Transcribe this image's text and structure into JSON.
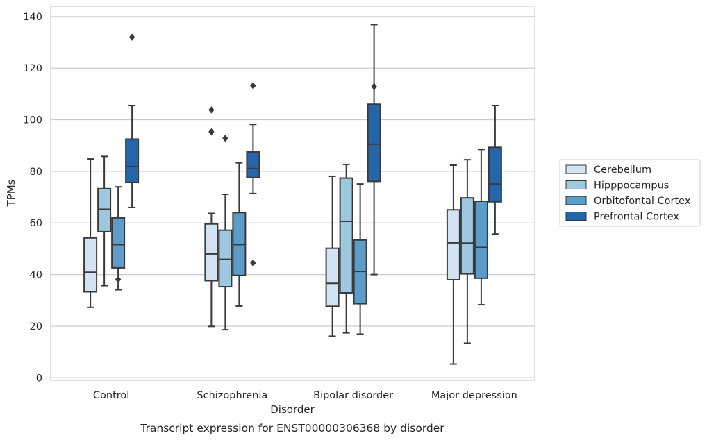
{
  "chart_data": {
    "type": "box",
    "title": "",
    "caption": "Transcript expression for ENST00000306368 by disorder",
    "xlabel": "Disorder",
    "ylabel": "TPMs",
    "ylim": [
      -1,
      144
    ],
    "yticks": [
      0,
      20,
      40,
      60,
      80,
      100,
      120,
      140
    ],
    "grid": "horizontal",
    "legend_position": "right",
    "categories": [
      "Control",
      "Schizophrenia",
      "Bipolar disorder",
      "Major depression"
    ],
    "series": [
      {
        "name": "Cerebellum",
        "color": "#d3e3f2",
        "boxes": [
          {
            "min": 27.3,
            "q1": 33.3,
            "median": 40.9,
            "q3": 54.2,
            "max": 84.8,
            "outliers": []
          },
          {
            "min": 19.9,
            "q1": 37.6,
            "median": 48.0,
            "q3": 59.6,
            "max": 63.7,
            "outliers": [
              95.3,
              103.8
            ]
          },
          {
            "min": 16.1,
            "q1": 27.7,
            "median": 36.6,
            "q3": 50.2,
            "max": 78.1,
            "outliers": []
          },
          {
            "min": 5.3,
            "q1": 38.0,
            "median": 52.3,
            "q3": 65.1,
            "max": 82.4,
            "outliers": []
          }
        ]
      },
      {
        "name": "Hipppocampus",
        "color": "#9ec7e0",
        "boxes": [
          {
            "min": 35.7,
            "q1": 56.6,
            "median": 65.3,
            "q3": 73.3,
            "max": 85.8,
            "outliers": []
          },
          {
            "min": 18.6,
            "q1": 35.3,
            "median": 45.9,
            "q3": 57.2,
            "max": 71.1,
            "outliers": [
              92.8
            ]
          },
          {
            "min": 17.4,
            "q1": 32.9,
            "median": 60.6,
            "q3": 77.4,
            "max": 82.7,
            "outliers": []
          },
          {
            "min": 13.4,
            "q1": 40.3,
            "median": 52.2,
            "q3": 69.7,
            "max": 84.5,
            "outliers": []
          }
        ]
      },
      {
        "name": "Orbitofontal Cortex",
        "color": "#5b9cc8",
        "boxes": [
          {
            "min": 34.1,
            "q1": 42.6,
            "median": 51.6,
            "q3": 62.0,
            "max": 74.0,
            "outliers": [
              38.1
            ]
          },
          {
            "min": 27.8,
            "q1": 39.7,
            "median": 51.6,
            "q3": 64.0,
            "max": 83.3,
            "outliers": []
          },
          {
            "min": 16.9,
            "q1": 28.7,
            "median": 41.2,
            "q3": 53.4,
            "max": 75.1,
            "outliers": []
          },
          {
            "min": 28.3,
            "q1": 38.6,
            "median": 50.5,
            "q3": 68.4,
            "max": 88.5,
            "outliers": []
          }
        ]
      },
      {
        "name": "Prefrontal Cortex",
        "color": "#2466a9",
        "boxes": [
          {
            "min": 66.0,
            "q1": 75.7,
            "median": 81.9,
            "q3": 92.5,
            "max": 105.5,
            "outliers": [
              132.0
            ]
          },
          {
            "min": 71.4,
            "q1": 77.6,
            "median": 81.1,
            "q3": 87.5,
            "max": 98.2,
            "outliers": [
              44.5,
              113.2
            ]
          },
          {
            "min": 40.0,
            "q1": 76.1,
            "median": 90.5,
            "q3": 106.0,
            "max": 136.9,
            "outliers": [
              112.9
            ]
          },
          {
            "min": 55.7,
            "q1": 68.2,
            "median": 75.1,
            "q3": 89.3,
            "max": 105.5,
            "outliers": []
          }
        ]
      }
    ]
  }
}
